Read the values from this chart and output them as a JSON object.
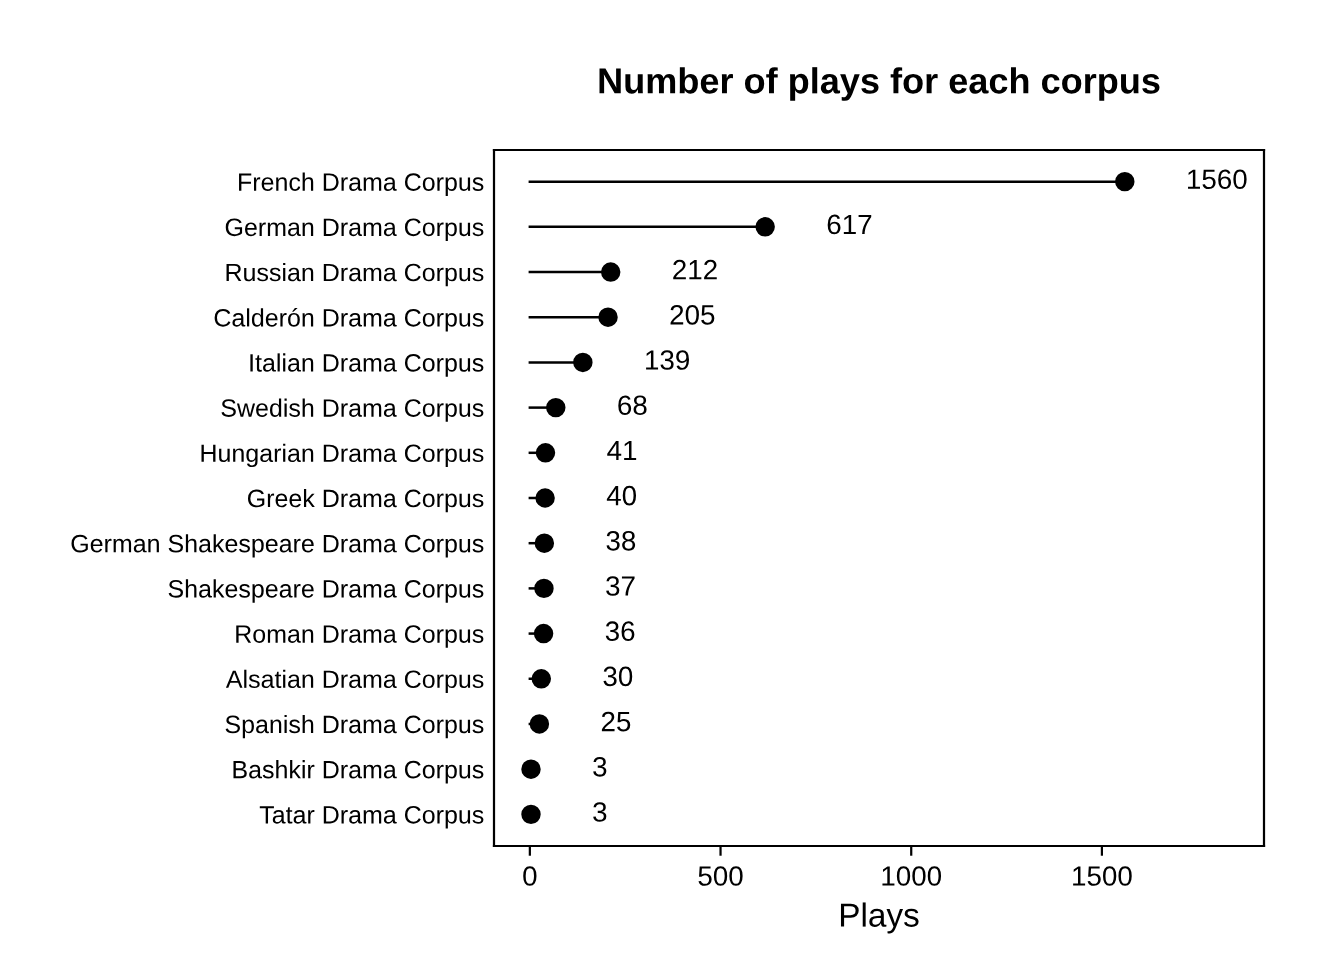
{
  "chart_data": {
    "type": "lollipop",
    "orientation": "horizontal",
    "title": "Number of plays for each corpus",
    "xlabel": "Plays",
    "categories": [
      "French Drama Corpus",
      "German Drama Corpus",
      "Russian Drama Corpus",
      "Calderón Drama Corpus",
      "Italian Drama Corpus",
      "Swedish Drama Corpus",
      "Hungarian Drama Corpus",
      "Greek Drama Corpus",
      "German Shakespeare Drama Corpus",
      "Shakespeare Drama Corpus",
      "Roman Drama Corpus",
      "Alsatian Drama Corpus",
      "Spanish Drama Corpus",
      "Bashkir Drama Corpus",
      "Tatar Drama Corpus"
    ],
    "values": [
      1560,
      617,
      212,
      205,
      139,
      68,
      41,
      40,
      38,
      37,
      36,
      30,
      25,
      3,
      3
    ],
    "color": "#000000",
    "marker": "circle",
    "data_labels": true,
    "legend": false,
    "xlim": [
      -94,
      1925
    ],
    "xticks": [
      0,
      500,
      1000,
      1500
    ]
  }
}
